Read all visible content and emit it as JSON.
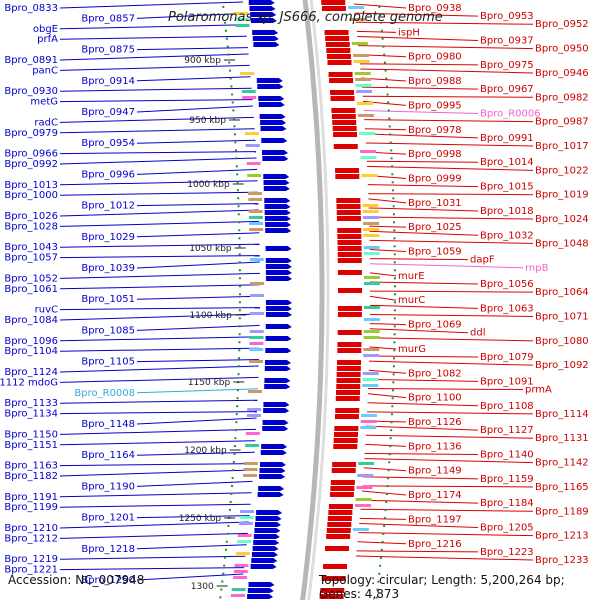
{
  "title": "Polaromonas sp. JS666, complete genome",
  "footer": {
    "accession": "Accession: NC_007948",
    "topology": "Topology: circular; Length: 5,200,264 bp; Genes: 4,873"
  },
  "colors": {
    "forward": "#dd0000",
    "reverse": "#0000cc",
    "rna_label": "#ee66cc",
    "trna_label": "#33aadd",
    "backbone": "#999999",
    "tick": "#2a8a2a"
  },
  "ticks": [
    "900 kbp",
    "950 kbp",
    "1000 kbp",
    "1050 kbp",
    "1100 kbp",
    "1150 kbp",
    "1200 kbp",
    "1250 kbp",
    "1300"
  ],
  "left_labels": [
    "Bpro_0833",
    "Bpro_0857",
    "obgE",
    "prfA",
    "Bpro_0875",
    "Bpro_0891",
    "panC",
    "Bpro_0914",
    "Bpro_0930",
    "metG",
    "Bpro_0947",
    "radC",
    "Bpro_0979",
    "Bpro_0954",
    "Bpro_0966",
    "Bpro_0992",
    "Bpro_0996",
    "Bpro_1013",
    "Bpro_1000",
    "Bpro_1012",
    "Bpro_1026",
    "Bpro_1028",
    "Bpro_1029",
    "Bpro_1043",
    "Bpro_1057",
    "Bpro_1039",
    "Bpro_1052",
    "Bpro_1061",
    "Bpro_1051",
    "ruvC",
    "Bpro_1084",
    "Bpro_1085",
    "Bpro_1096",
    "Bpro_1104",
    "Bpro_1105",
    "Bpro_1124",
    "Bpro_1112 mdoG",
    "Bpro_R0008",
    "Bpro_1133",
    "Bpro_1134",
    "Bpro_1148",
    "Bpro_1150",
    "Bpro_1151",
    "Bpro_1164",
    "Bpro_1163",
    "Bpro_1182",
    "Bpro_1190",
    "Bpro_1191",
    "Bpro_1199",
    "Bpro_1201",
    "Bpro_1210",
    "Bpro_1212",
    "Bpro_1218",
    "Bpro_1219",
    "Bpro_1221",
    "Bpro_1250"
  ],
  "right_labels": [
    "Bpro_0938",
    "Bpro_0953",
    "Bpro_0952",
    "ispH",
    "Bpro_0937",
    "Bpro_0950",
    "Bpro_0980",
    "Bpro_0975",
    "Bpro_0946",
    "Bpro_0988",
    "Bpro_0967",
    "Bpro_0982",
    "Bpro_0995",
    "Bpro_R0006",
    "Bpro_0987",
    "Bpro_0978",
    "Bpro_0991",
    "Bpro_1017",
    "Bpro_0998",
    "Bpro_1014",
    "Bpro_1022",
    "Bpro_0999",
    "Bpro_1015",
    "Bpro_1019",
    "Bpro_1031",
    "Bpro_1018",
    "Bpro_1024",
    "Bpro_1025",
    "Bpro_1032",
    "Bpro_1048",
    "Bpro_1059",
    "dapF",
    "rnpB",
    "murE",
    "Bpro_1056",
    "Bpro_1064",
    "murC",
    "Bpro_1063",
    "Bpro_1071",
    "Bpro_1069",
    "ddl",
    "Bpro_1080",
    "murG",
    "Bpro_1079",
    "Bpro_1092",
    "Bpro_1082",
    "Bpro_1091",
    "prmA",
    "Bpro_1100",
    "Bpro_1108",
    "Bpro_1114",
    "Bpro_1126",
    "Bpro_1127",
    "Bpro_1131",
    "Bpro_1136",
    "Bpro_1140",
    "Bpro_1142",
    "Bpro_1149",
    "Bpro_1159",
    "Bpro_1165",
    "Bpro_1174",
    "Bpro_1184",
    "Bpro_1189",
    "Bpro_1197",
    "Bpro_1205",
    "Bpro_1213",
    "Bpro_1216",
    "Bpro_1223",
    "Bpro_1233"
  ]
}
